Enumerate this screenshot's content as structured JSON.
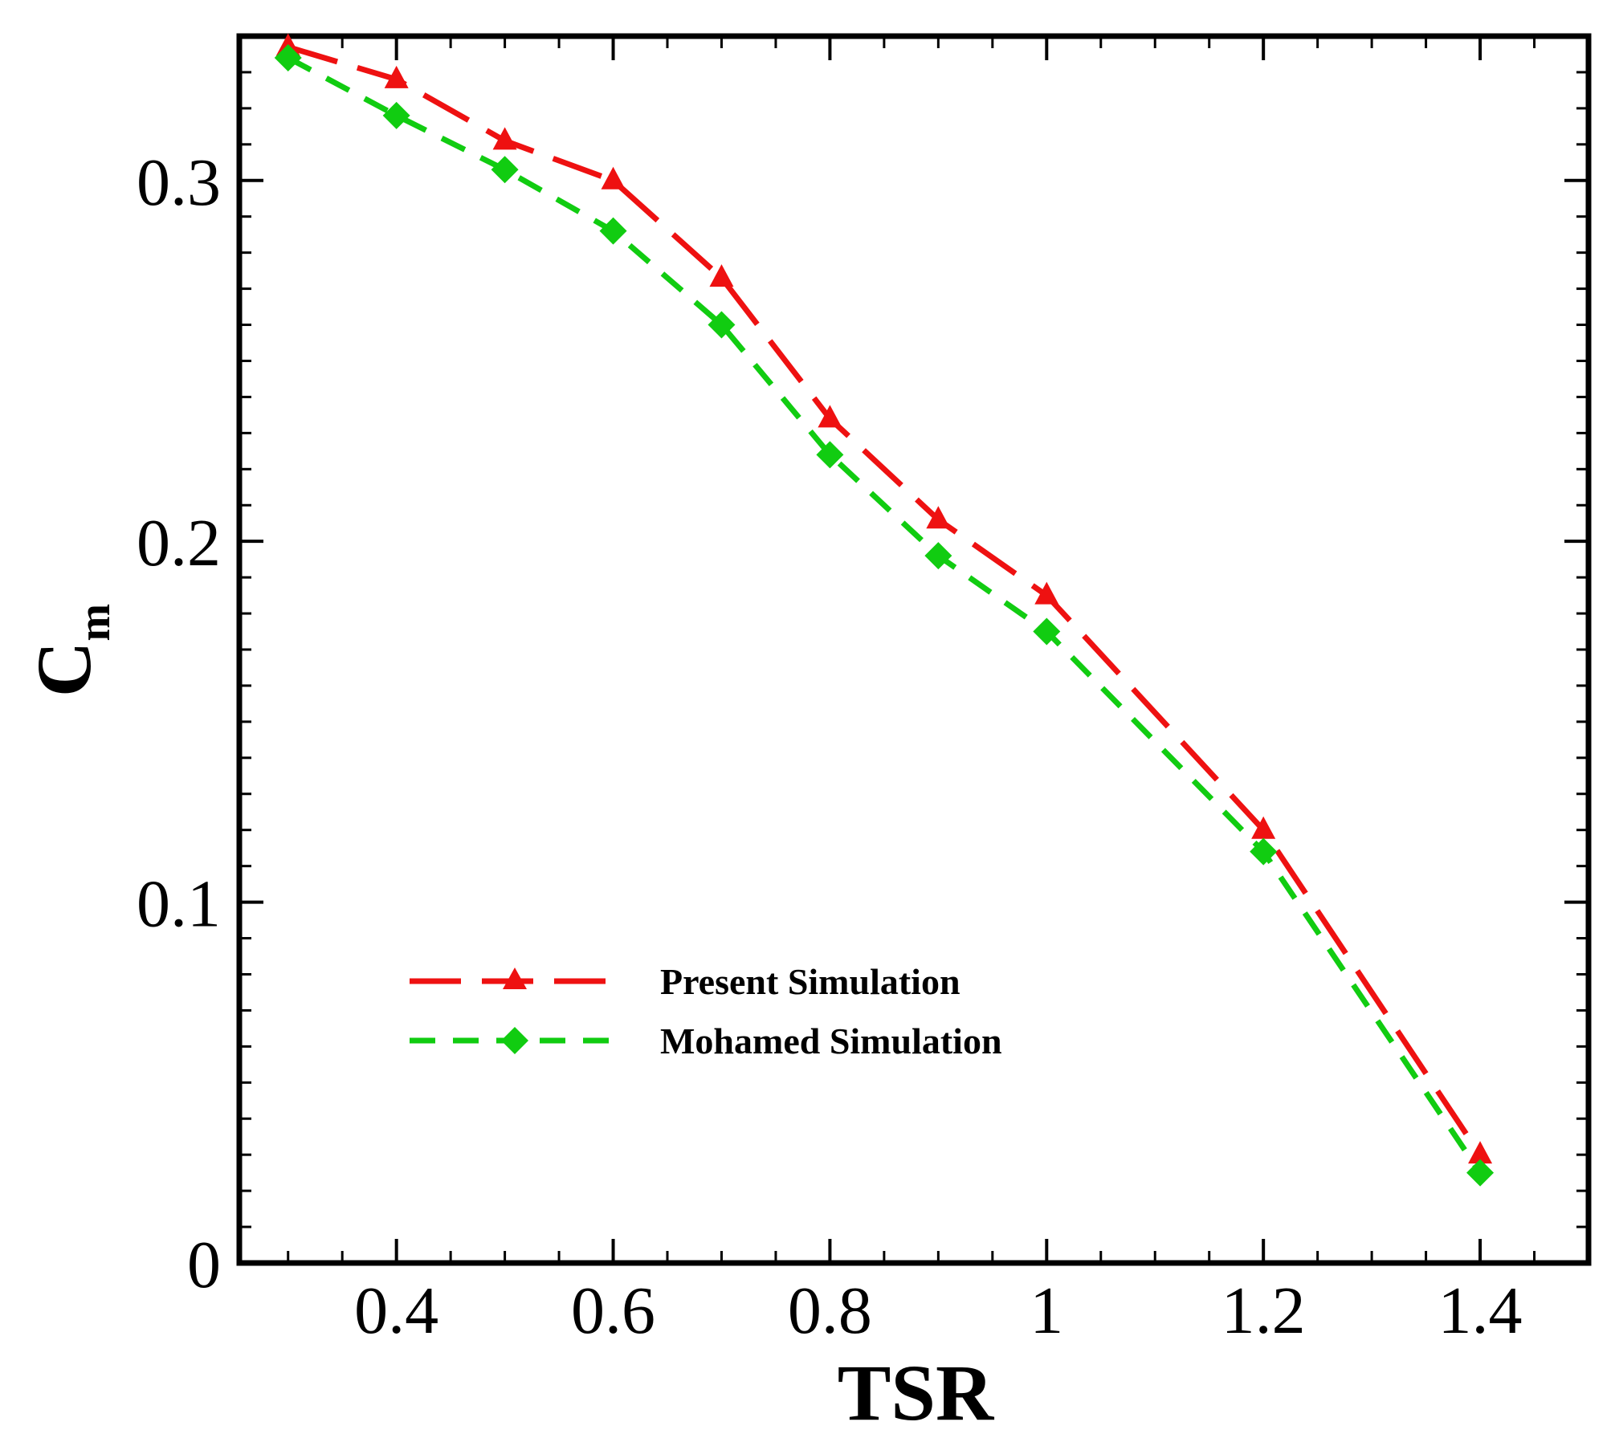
{
  "chart_data": {
    "type": "line",
    "title": "",
    "xlabel": "TSR",
    "ylabel": "C",
    "ylabel_subscript": "m",
    "xlim": [
      0.255,
      1.5
    ],
    "ylim": [
      0,
      0.34
    ],
    "xticks": [
      0.4,
      0.6,
      0.8,
      1.0,
      1.2,
      1.4
    ],
    "xtick_labels": [
      "0.4",
      "0.6",
      "0.8",
      "1",
      "1.2",
      "1.4"
    ],
    "yticks": [
      0,
      0.1,
      0.2,
      0.3
    ],
    "ytick_labels": [
      "0",
      "0.1",
      "0.2",
      "0.3"
    ],
    "grid": false,
    "legend_position": "lower-left-center",
    "series": [
      {
        "name": "Present Simulation",
        "color": "#ee1111",
        "marker": "triangle",
        "line_style": "long-dash",
        "x": [
          0.3,
          0.4,
          0.5,
          0.6,
          0.7,
          0.8,
          0.9,
          1.0,
          1.2,
          1.4
        ],
        "y": [
          0.337,
          0.328,
          0.311,
          0.3,
          0.273,
          0.234,
          0.206,
          0.185,
          0.12,
          0.03
        ]
      },
      {
        "name": "Mohamed Simulation",
        "color": "#11cc11",
        "marker": "diamond",
        "line_style": "short-dash",
        "x": [
          0.3,
          0.4,
          0.5,
          0.6,
          0.7,
          0.8,
          0.9,
          1.0,
          1.2,
          1.4
        ],
        "y": [
          0.334,
          0.318,
          0.303,
          0.286,
          0.26,
          0.224,
          0.196,
          0.175,
          0.114,
          0.025
        ]
      }
    ]
  }
}
